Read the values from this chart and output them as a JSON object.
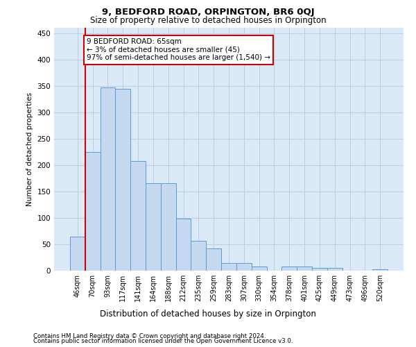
{
  "title1": "9, BEDFORD ROAD, ORPINGTON, BR6 0QJ",
  "title2": "Size of property relative to detached houses in Orpington",
  "xlabel": "Distribution of detached houses by size in Orpington",
  "ylabel": "Number of detached properties",
  "categories": [
    "46sqm",
    "70sqm",
    "93sqm",
    "117sqm",
    "141sqm",
    "164sqm",
    "188sqm",
    "212sqm",
    "235sqm",
    "259sqm",
    "283sqm",
    "307sqm",
    "330sqm",
    "354sqm",
    "378sqm",
    "401sqm",
    "425sqm",
    "449sqm",
    "473sqm",
    "496sqm",
    "520sqm"
  ],
  "values": [
    65,
    225,
    347,
    345,
    208,
    165,
    165,
    98,
    56,
    42,
    15,
    15,
    8,
    0,
    8,
    8,
    5,
    5,
    0,
    0,
    3
  ],
  "bar_color": "#c5d9f0",
  "bar_edge_color": "#5b9bd5",
  "highlight_bar_index": 1,
  "highlight_line_color": "#cc0000",
  "annotation_line1": "9 BEDFORD ROAD: 65sqm",
  "annotation_line2": "← 3% of detached houses are smaller (45)",
  "annotation_line3": "97% of semi-detached houses are larger (1,540) →",
  "annotation_box_color": "#ffffff",
  "annotation_box_edge_color": "#cc0000",
  "grid_color": "#c0cfe0",
  "bg_color": "#dce9f7",
  "footer1": "Contains HM Land Registry data © Crown copyright and database right 2024.",
  "footer2": "Contains public sector information licensed under the Open Government Licence v3.0.",
  "ylim": [
    0,
    460
  ],
  "yticks": [
    0,
    50,
    100,
    150,
    200,
    250,
    300,
    350,
    400,
    450
  ]
}
